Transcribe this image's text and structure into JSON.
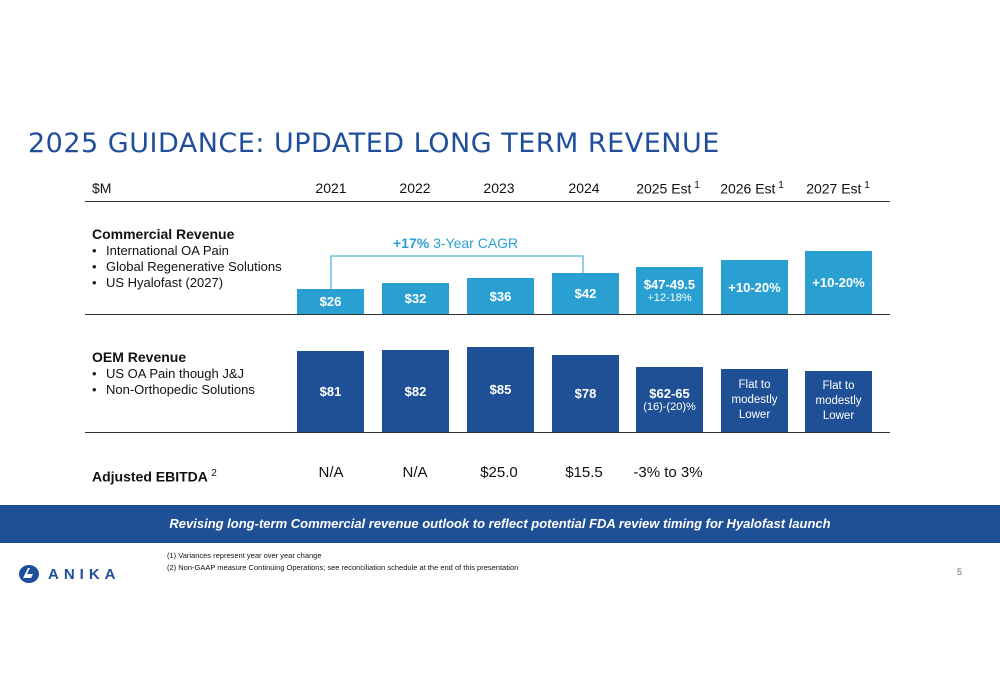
{
  "title": "2025 GUIDANCE: UPDATED LONG TERM REVENUE",
  "header": {
    "unit": "$M",
    "columns": [
      {
        "label": "2021",
        "sup": ""
      },
      {
        "label": "2022",
        "sup": ""
      },
      {
        "label": "2023",
        "sup": ""
      },
      {
        "label": "2024",
        "sup": ""
      },
      {
        "label": "2025 Est",
        "sup": "1"
      },
      {
        "label": "2026 Est",
        "sup": "1"
      },
      {
        "label": "2027 Est",
        "sup": "1"
      }
    ]
  },
  "commercial": {
    "title": "Commercial Revenue",
    "bullets": [
      "International OA Pain",
      "Global Regenerative Solutions",
      "US Hyalofast (2027)"
    ],
    "cagr_bold": "+17%",
    "cagr_rest": " 3-Year CAGR",
    "bar_labels": [
      {
        "main": "$26",
        "sub": ""
      },
      {
        "main": "$32",
        "sub": ""
      },
      {
        "main": "$36",
        "sub": ""
      },
      {
        "main": "$42",
        "sub": ""
      },
      {
        "main": "$47-49.5",
        "sub": "+12-18%"
      },
      {
        "main": "+10-20%",
        "sub": ""
      },
      {
        "main": "+10-20%",
        "sub": ""
      }
    ]
  },
  "oem": {
    "title": "OEM Revenue",
    "bullets": [
      "US OA Pain though J&J",
      "Non-Orthopedic Solutions"
    ],
    "bar_labels": [
      {
        "main": "$81",
        "sub": ""
      },
      {
        "main": "$82",
        "sub": ""
      },
      {
        "main": "$85",
        "sub": ""
      },
      {
        "main": "$78",
        "sub": ""
      },
      {
        "main": "$62-65",
        "sub": "(16)-(20)%"
      },
      {
        "main": "Flat to modestly Lower",
        "sub": ""
      },
      {
        "main": "Flat to modestly Lower",
        "sub": ""
      }
    ]
  },
  "ebitda": {
    "label": "Adjusted EBITDA",
    "sup": "2",
    "values": [
      "N/A",
      "N/A",
      "$25.0",
      "$15.5",
      "-3% to 3%",
      "",
      ""
    ]
  },
  "banner": "Revising long-term Commercial revenue outlook to reflect potential FDA review timing for Hyalofast launch",
  "footnotes": [
    "(1)   Variances represent year over year change",
    "(2)   Non-GAAP measure Continuing Operations; see reconciliation schedule at the end of this presentation"
  ],
  "logo_text": "ANIKA",
  "page_number": "5",
  "colors": {
    "title": "#1f4e9c",
    "commercial_bar": "#2aa0d2",
    "oem_bar": "#1f4f95",
    "banner": "#1f4f95"
  },
  "chart_data": {
    "type": "bar",
    "categories": [
      "2021",
      "2022",
      "2023",
      "2024",
      "2025 Est",
      "2026 Est",
      "2027 Est"
    ],
    "series": [
      {
        "name": "Commercial Revenue",
        "values": [
          26,
          32,
          36,
          42,
          48.25,
          null,
          null
        ]
      },
      {
        "name": "OEM Revenue",
        "values": [
          81,
          82,
          85,
          78,
          63.5,
          null,
          null
        ]
      }
    ],
    "ylabel": "$M"
  }
}
